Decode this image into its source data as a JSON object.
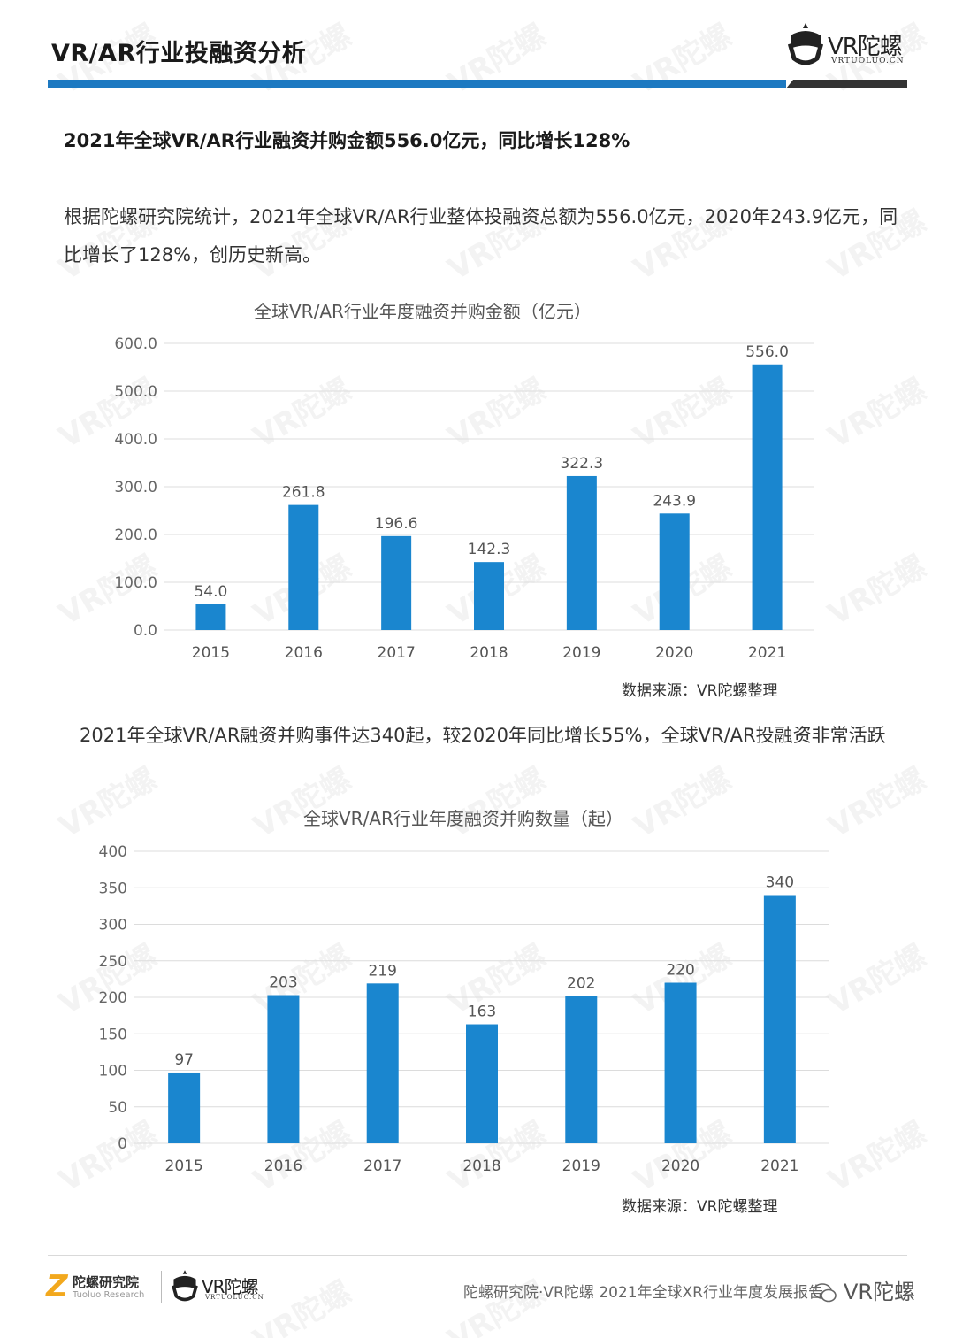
{
  "header": {
    "title": "VR/AR行业投融资分析",
    "logo_text": "VR陀螺",
    "logo_sub": "VRTUOLUO.CN"
  },
  "section": {
    "heading": "2021年全球VR/AR行业融资并购金额556.0亿元，同比增长128%",
    "paragraph1": "根据陀螺研究院统计，2021年全球VR/AR行业整体投融资总额为556.0亿元，2020年243.9亿元，同比增长了128%，创历史新高。",
    "paragraph2": "2021年全球VR/AR融资并购事件达340起，较2020年同比增长55%，全球VR/AR投融资非常活跃"
  },
  "chart_data": [
    {
      "type": "bar",
      "title": "全球VR/AR行业年度融资并购金额（亿元）",
      "categories": [
        "2015",
        "2016",
        "2017",
        "2018",
        "2019",
        "2020",
        "2021"
      ],
      "values": [
        54.0,
        261.8,
        196.6,
        142.3,
        322.3,
        243.9,
        556.0
      ],
      "value_labels": [
        "54.0",
        "261.8",
        "196.6",
        "142.3",
        "322.3",
        "243.9",
        "556.0"
      ],
      "yticks": [
        "0.0",
        "100.0",
        "200.0",
        "300.0",
        "400.0",
        "500.0",
        "600.0"
      ],
      "ylim": [
        0,
        600
      ],
      "grid": true,
      "bar_color": "#1a86cf",
      "source": "数据来源：VR陀螺整理"
    },
    {
      "type": "bar",
      "title": "全球VR/AR行业年度融资并购数量（起）",
      "categories": [
        "2015",
        "2016",
        "2017",
        "2018",
        "2019",
        "2020",
        "2021"
      ],
      "values": [
        97,
        203,
        219,
        163,
        202,
        220,
        340
      ],
      "value_labels": [
        "97",
        "203",
        "219",
        "163",
        "202",
        "220",
        "340"
      ],
      "yticks": [
        "0",
        "50",
        "100",
        "150",
        "200",
        "250",
        "300",
        "350",
        "400"
      ],
      "ylim": [
        0,
        400
      ],
      "grid": true,
      "bar_color": "#1a86cf",
      "source": "数据来源：VR陀螺整理"
    }
  ],
  "footer": {
    "logo1_z": "Z",
    "logo1_text": "陀螺研究院",
    "logo1_sub": "Tuoluo Research",
    "logo2_text": "VR陀螺",
    "logo2_sub": "VRTUOLUO.CN",
    "text": "陀螺研究院·VR陀螺 2021年全球XR行业年度发展报告",
    "wechat_label": "VR陀螺"
  },
  "watermark_text": "VR陀螺"
}
